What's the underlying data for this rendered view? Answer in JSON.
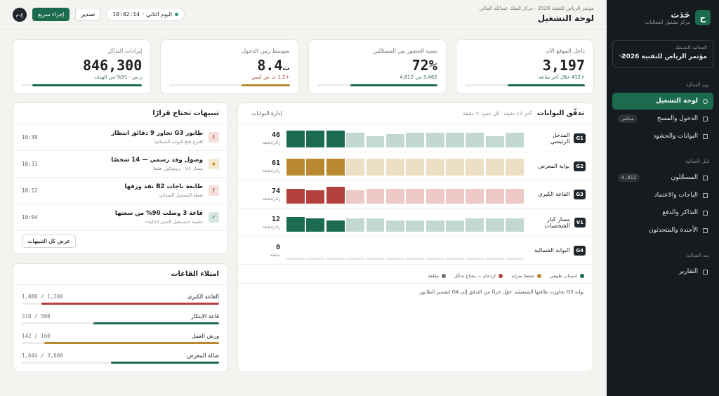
{
  "sidebar": {
    "logo": "ح",
    "brand": "حَدَث",
    "brand_sub": "مركز تشغيل الفعاليات",
    "event_label": "الفعالية النشطة",
    "event_name": "مؤتمر الرياض للتقنية 2026",
    "sections": [
      {
        "title": "يوم الفعالية",
        "items": [
          {
            "label": "لوحة التشغيل",
            "active": true
          },
          {
            "label": "الدخول والمسح",
            "badge": "مباشر"
          },
          {
            "label": "البوابات والحشود"
          }
        ]
      },
      {
        "title": "قبل الفعالية",
        "items": [
          {
            "label": "المسجّلون",
            "badge": "4,812"
          },
          {
            "label": "الباجات والاعتماد"
          },
          {
            "label": "التذاكر والدفع"
          },
          {
            "label": "الأجندة والمتحدثون"
          }
        ]
      },
      {
        "title": "بعد الفعالية",
        "items": [
          {
            "label": "التقارير"
          }
        ]
      }
    ]
  },
  "header": {
    "breadcrumb": "مؤتمر الرياض للتقنية 2026 · مركز الملك عبدالله المالي",
    "title": "لوحة التشغيل",
    "day": "اليوم الثاني ·",
    "clock": "10:42:14",
    "export": "تصدير",
    "quick": "إجراء سريع",
    "avatar": "ع.م"
  },
  "kpis": [
    {
      "label": "داخل الموقع الآن",
      "value": "3,197",
      "note": "+412 خلال آخر ساعة",
      "note_color": "#1b6b4e",
      "progress": 64,
      "color": "#1b6b4e"
    },
    {
      "label": "نسبة الحضور من المسجّلين",
      "value": "72%",
      "note": "3,462 من 4,812",
      "note_color": "#3d6b58",
      "progress": 72,
      "color": "#1b6b4e"
    },
    {
      "label": "متوسط زمن الدخول",
      "value": "8.4",
      "unit": "ث",
      "note": "+1.2 ث عن أمس",
      "note_color": "#b3403a",
      "progress": 40,
      "color": "#b8892e"
    },
    {
      "label": "إيرادات التذاكر",
      "value": "846,300",
      "note": "ر.س · 91% من الهدف",
      "note_color": "#3d6b58",
      "progress": 91,
      "color": "#1b6b4e"
    }
  ],
  "gates": {
    "title": "تدفّق البوابات",
    "subtitle": "آخر 12 دقيقة · كل عمود = دقيقة",
    "button": "إدارة البوابات",
    "ylim": [
      0,
      10
    ],
    "rows": [
      {
        "code": "G1",
        "name": "المدخل الرئيسي",
        "rate": "46",
        "unit": "زائر/دقيقة",
        "color": "#1b6b4e",
        "light": "#c3d9d0",
        "bars": [
          8,
          6,
          8,
          8,
          8,
          8,
          7,
          6,
          8,
          9,
          9,
          9
        ]
      },
      {
        "code": "G2",
        "name": "بوابة المعرض",
        "rate": "61",
        "unit": "زائر/دقيقة",
        "color": "#b8892e",
        "light": "#ecdfc4",
        "bars": [
          9,
          9,
          9,
          9,
          9,
          9,
          9,
          9,
          9,
          9,
          9,
          9
        ]
      },
      {
        "code": "G3",
        "name": "القاعة الكبرى",
        "rate": "74",
        "unit": "زائر/دقيقة",
        "color": "#b3403a",
        "light": "#ecc9c6",
        "bars": [
          8,
          8,
          8,
          8,
          8,
          8,
          8,
          8,
          7,
          9,
          7,
          8
        ]
      },
      {
        "code": "V1",
        "name": "مسار كبار الشخصيات",
        "rate": "12",
        "unit": "زائر/دقيقة",
        "color": "#1b6b4e",
        "light": "#c3d9d0",
        "bars": [
          7,
          7,
          7,
          6,
          6,
          6,
          6,
          7,
          7,
          6,
          7,
          8
        ]
      },
      {
        "code": "G4",
        "name": "البوابة الشمالية",
        "rate": "0",
        "unit": "مغلقة",
        "color": "#c9c9c4",
        "light": "#e2e2de",
        "bars": [
          0,
          0,
          0,
          0,
          0,
          0,
          0,
          0,
          0,
          0,
          0,
          0
        ]
      }
    ],
    "legend": [
      {
        "label": "انسياب طبيعي",
        "color": "#1b6b4e"
      },
      {
        "label": "ضغط متزايد",
        "color": "#b8892e"
      },
      {
        "label": "ازدحام — يحتاج تدخّل",
        "color": "#b3403a"
      },
      {
        "label": "مغلقة",
        "color": "#6f6f6a"
      }
    ],
    "note": "بوابة G3 تجاوزت طاقتها التشغيلية. حوّل جزءًا من التدفق إلى G4 لتقصير الطابور."
  },
  "alerts": {
    "title": "تنبيهات تحتاج قرارًا",
    "button": "عرض كل التنبيهات",
    "items": [
      {
        "icon": "!",
        "color": "#b3403a",
        "bg": "#f6dedc",
        "title": "طابور G3 تجاوز 9 دقائق انتظار",
        "sub": "اقترح فتح البوابة الشمالية",
        "time": "10:39"
      },
      {
        "icon": "★",
        "color": "#b8892e",
        "bg": "#f3e7cd",
        "title": "وصول وفد رسمي — 14 شخصًا",
        "sub": "مسار V1 · بروتوكول فقط",
        "time": "10:31"
      },
      {
        "icon": "!",
        "color": "#b3403a",
        "bg": "#f6dedc",
        "title": "طابعة باجات B2 نفد ورقها",
        "sub": "نقطة التسجيل الميداني",
        "time": "10:12"
      },
      {
        "icon": "✓",
        "color": "#1b6b4e",
        "bg": "#d7e8e0",
        "title": "قاعة 3 وصلت 90% من سعتها",
        "sub": "جلسة «مستقبل المدن الذكية»",
        "time": "10:04"
      }
    ]
  },
  "halls": {
    "title": "امتلاء القاعات",
    "rows": [
      {
        "name": "القاعة الكبرى",
        "label": "1,200 / 1,080",
        "capacity": 1200,
        "occupied": 1080,
        "color": "#b3403a"
      },
      {
        "name": "قاعة الابتكار",
        "label": "500 / 318",
        "capacity": 500,
        "occupied": 318,
        "color": "#1b6b4e"
      },
      {
        "name": "ورش العمل",
        "label": "160 / 142",
        "capacity": 160,
        "occupied": 142,
        "color": "#b8892e"
      },
      {
        "name": "صالة المعرض",
        "label": "3,000 / 1,644",
        "capacity": 3000,
        "occupied": 1644,
        "color": "#1b6b4e"
      }
    ]
  }
}
